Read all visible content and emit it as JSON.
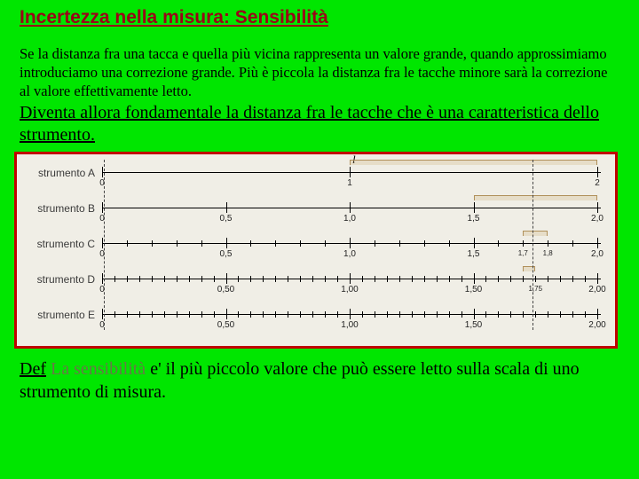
{
  "title": "Incertezza nella misura: Sensibilità",
  "para1": "Se la distanza fra una tacca e quella più vicina rappresenta un valore grande, quando approssimiamo introduciamo una correzione grande. Più è piccola la distanza fra le tacche minore sarà la correzione al valore effettivamente letto.",
  "para2": "Diventa allora fondamentale la distanza fra le tacche che è una caratteristica dello strumento.",
  "diagram": {
    "l_symbol": "l",
    "rulers": [
      {
        "label": "strumento A",
        "range": [
          0,
          2
        ],
        "step": 1,
        "minor_step": null,
        "tick_labels": [
          "0",
          "1",
          "2"
        ],
        "bracket": [
          1,
          2
        ]
      },
      {
        "label": "strumento B",
        "range": [
          0,
          2
        ],
        "step": 0.5,
        "minor_step": null,
        "tick_labels": [
          "0",
          "0,5",
          "1,0",
          "1,5",
          "2,0"
        ],
        "bracket": [
          1.5,
          2.0
        ]
      },
      {
        "label": "strumento C",
        "range": [
          0,
          2
        ],
        "step": 0.5,
        "minor_step": 0.1,
        "tick_labels_major": [
          "0",
          "0,5",
          "1,0",
          "1,5",
          "2,0"
        ],
        "extra_labels": [
          [
            1.7,
            "1,7"
          ],
          [
            1.8,
            "1,8"
          ]
        ],
        "bracket": [
          1.7,
          1.8
        ]
      },
      {
        "label": "strumento D",
        "range": [
          0,
          2
        ],
        "step": 0.5,
        "minor_step": 0.05,
        "tick_labels_major": [
          "0",
          "0,50",
          "1,00",
          "1,50",
          "2,00"
        ],
        "extra_labels": [
          [
            1.75,
            "1,75"
          ]
        ],
        "bracket": [
          1.7,
          1.75
        ]
      },
      {
        "label": "strumento E",
        "range": [
          0,
          2
        ],
        "step": 0.5,
        "minor_step": 0.05,
        "tick_labels_major": [
          "0",
          "0,50",
          "1,00",
          "1,50",
          "2,00"
        ],
        "bracket": null
      }
    ],
    "measured_value": 1.73,
    "frame_color": "#c00000",
    "bg_color": "#f0eee6"
  },
  "def_label": "Def",
  "def_term": " La sensibilità ",
  "def_body": "e' il più piccolo valore che può essere letto sulla scala di uno strumento di misura.",
  "colors": {
    "page_bg": "#00e600",
    "title": "#9b0018",
    "bracket": "#b0905a"
  }
}
